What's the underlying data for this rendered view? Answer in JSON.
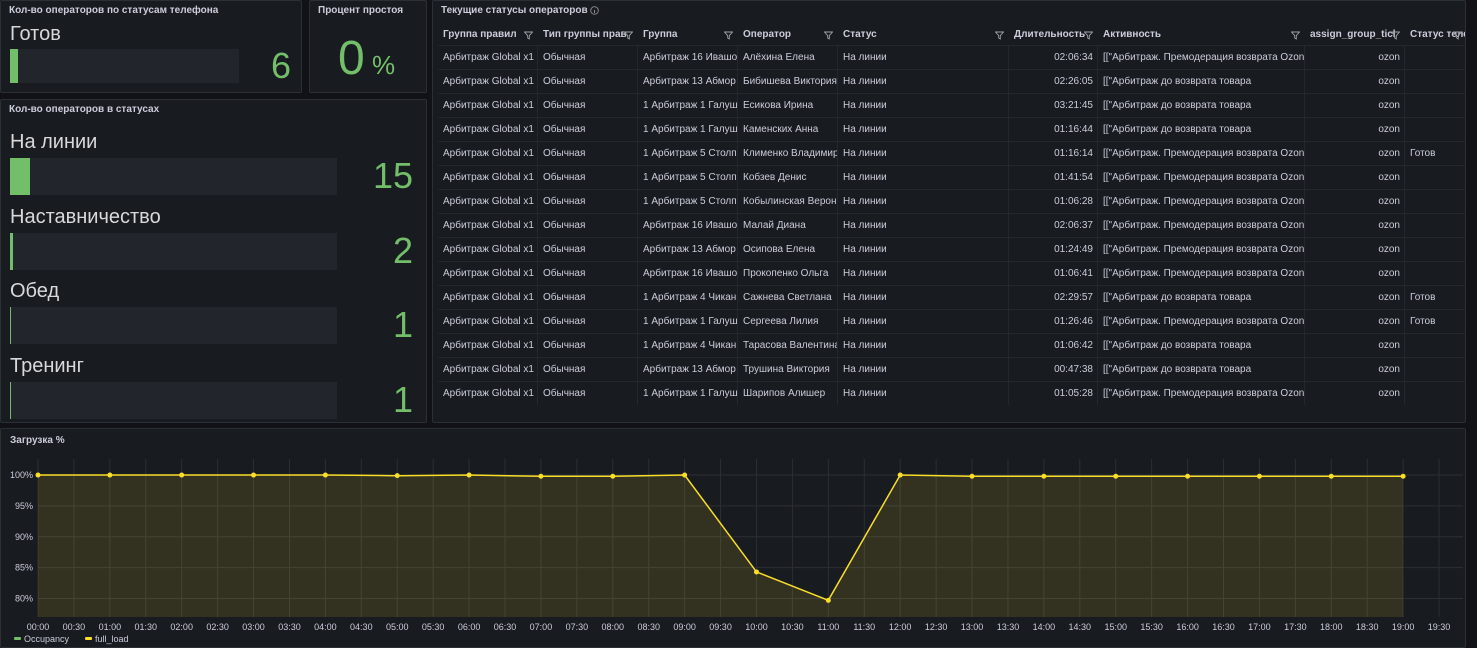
{
  "panels": {
    "phone_status": {
      "title": "Кол-во операторов по статусам телефона",
      "items": [
        {
          "label": "Готов",
          "value": 6
        }
      ]
    },
    "idle": {
      "title": "Процент простоя",
      "value": 0,
      "unit": "%"
    },
    "statuses": {
      "title": "Кол-во операторов в статусах",
      "items": [
        {
          "label": "На линии",
          "value": 15
        },
        {
          "label": "Наставничество",
          "value": 2
        },
        {
          "label": "Обед",
          "value": 1
        },
        {
          "label": "Тренинг",
          "value": 1
        }
      ]
    },
    "table": {
      "title": "Текущие статусы операторов",
      "columns": [
        "Группа правил",
        "Тип группы прав",
        "Группа",
        "Оператор",
        "Статус",
        "Длительность",
        "Активность",
        "assign_group_ticl",
        "Статус теле"
      ],
      "rows": [
        [
          "Арбитраж Global x1",
          "Обычная",
          "Арбитраж 16 Ивашов",
          "Алёхина Елена",
          "На линии",
          "02:06:34",
          "[[\"Арбитраж. Премодерация возврата Ozon",
          "ozon"
        ],
        [
          "Арбитраж Global x1",
          "Обычная",
          "Арбитраж 13 Абмор",
          "Бибишева Виктория",
          "На линии",
          "02:26:05",
          "[[\"Арбитраж до возврата товара",
          "ozon"
        ],
        [
          "Арбитраж Global x1",
          "Обычная",
          "1 Арбитраж 1 Галуш",
          "Есикова Ирина",
          "На линии",
          "03:21:45",
          "[[\"Арбитраж до возврата товара",
          "ozon"
        ],
        [
          "Арбитраж Global x1",
          "Обычная",
          "1 Арбитраж 1 Галуш",
          "Каменских Анна",
          "На линии",
          "01:16:44",
          "[[\"Арбитраж до возврата товара",
          "ozon"
        ],
        [
          "Арбитраж Global x1",
          "Обычная",
          "1 Арбитраж 5 Столп",
          "Клименко Владимир",
          "На линии",
          "01:16:14",
          "[[\"Арбитраж. Премодерация возврата Ozon",
          "ozon",
          "Готов"
        ],
        [
          "Арбитраж Global x1",
          "Обычная",
          "1 Арбитраж 5 Столп",
          "Кобзев Денис",
          "На линии",
          "01:41:54",
          "[[\"Арбитраж. Премодерация возврата Ozon",
          "ozon"
        ],
        [
          "Арбитраж Global x1",
          "Обычная",
          "1 Арбитраж 5 Столп",
          "Кобылинская Верон",
          "На линии",
          "01:06:28",
          "[[\"Арбитраж. Премодерация возврата Ozon",
          "ozon"
        ],
        [
          "Арбитраж Global x1",
          "Обычная",
          "Арбитраж 16 Ивашов",
          "Малай Диана",
          "На линии",
          "02:06:37",
          "[[\"Арбитраж. Премодерация возврата Ozon",
          "ozon"
        ],
        [
          "Арбитраж Global x1",
          "Обычная",
          "Арбитраж 13 Абмор",
          "Осипова Елена",
          "На линии",
          "01:24:49",
          "[[\"Арбитраж. Премодерация возврата Ozon",
          "ozon"
        ],
        [
          "Арбитраж Global x1",
          "Обычная",
          "Арбитраж 16 Ивашов",
          "Прокопенко Ольга",
          "На линии",
          "01:06:41",
          "[[\"Арбитраж. Премодерация возврата Ozon",
          "ozon"
        ],
        [
          "Арбитраж Global x1",
          "Обычная",
          "1 Арбитраж 4 Чикан",
          "Сажнева Светлана",
          "На линии",
          "02:29:57",
          "[[\"Арбитраж до возврата товара",
          "ozon",
          "Готов"
        ],
        [
          "Арбитраж Global x1",
          "Обычная",
          "1 Арбитраж 1 Галуш",
          "Сергеева Лилия",
          "На линии",
          "01:26:46",
          "[[\"Арбитраж. Премодерация возврата Ozon",
          "ozon",
          "Готов"
        ],
        [
          "Арбитраж Global x1",
          "Обычная",
          "1 Арбитраж 4 Чикан",
          "Тарасова Валентина",
          "На линии",
          "01:06:42",
          "[[\"Арбитраж до возврата товара",
          "ozon"
        ],
        [
          "Арбитраж Global x1",
          "Обычная",
          "Арбитраж 13 Абмор",
          "Трушина Виктория",
          "На линии",
          "00:47:38",
          "[[\"Арбитраж до возврата товара",
          "ozon"
        ],
        [
          "Арбитраж Global x1",
          "Обычная",
          "1 Арбитраж 1 Галуш",
          "Шарипов Алишер",
          "На линии",
          "01:05:28",
          "[[\"Арбитраж. Премодерация возврата Ozon",
          "ozon"
        ]
      ]
    }
  },
  "chart_data": {
    "type": "line",
    "title": "Загрузка %",
    "x": [
      0,
      60,
      120,
      180,
      240,
      300,
      360,
      420,
      480,
      540,
      600,
      660,
      720,
      780,
      840,
      900,
      960,
      1020,
      1080,
      1140
    ],
    "series": [
      {
        "name": "Occupancy",
        "color": "#73bf69"
      },
      {
        "name": "full_load",
        "color": "#fade2a",
        "values": [
          100,
          100,
          100,
          100,
          100,
          99.9,
          100,
          99.8,
          99.8,
          100,
          84.3,
          79.7,
          100,
          99.8,
          99.8,
          99.8,
          99.8,
          99.8,
          99.8,
          99.8
        ]
      }
    ],
    "xlim": [
      0,
      1190
    ],
    "xticks": [
      {
        "value": 0,
        "label": "00:00"
      },
      {
        "value": 30,
        "label": "00:30"
      },
      {
        "value": 60,
        "label": "01:00"
      },
      {
        "value": 90,
        "label": "01:30"
      },
      {
        "value": 120,
        "label": "02:00"
      },
      {
        "value": 150,
        "label": "02:30"
      },
      {
        "value": 180,
        "label": "03:00"
      },
      {
        "value": 210,
        "label": "03:30"
      },
      {
        "value": 240,
        "label": "04:00"
      },
      {
        "value": 270,
        "label": "04:30"
      },
      {
        "value": 300,
        "label": "05:00"
      },
      {
        "value": 330,
        "label": "05:30"
      },
      {
        "value": 360,
        "label": "06:00"
      },
      {
        "value": 390,
        "label": "06:30"
      },
      {
        "value": 420,
        "label": "07:00"
      },
      {
        "value": 450,
        "label": "07:30"
      },
      {
        "value": 480,
        "label": "08:00"
      },
      {
        "value": 510,
        "label": "08:30"
      },
      {
        "value": 540,
        "label": "09:00"
      },
      {
        "value": 570,
        "label": "09:30"
      },
      {
        "value": 600,
        "label": "10:00"
      },
      {
        "value": 630,
        "label": "10:30"
      },
      {
        "value": 660,
        "label": "11:00"
      },
      {
        "value": 690,
        "label": "11:30"
      },
      {
        "value": 720,
        "label": "12:00"
      },
      {
        "value": 750,
        "label": "12:30"
      },
      {
        "value": 780,
        "label": "13:00"
      },
      {
        "value": 810,
        "label": "13:30"
      },
      {
        "value": 840,
        "label": "14:00"
      },
      {
        "value": 870,
        "label": "14:30"
      },
      {
        "value": 900,
        "label": "15:00"
      },
      {
        "value": 930,
        "label": "15:30"
      },
      {
        "value": 960,
        "label": "16:00"
      },
      {
        "value": 990,
        "label": "16:30"
      },
      {
        "value": 1020,
        "label": "17:00"
      },
      {
        "value": 1050,
        "label": "17:30"
      },
      {
        "value": 1080,
        "label": "18:00"
      },
      {
        "value": 1110,
        "label": "18:30"
      },
      {
        "value": 1140,
        "label": "19:00"
      },
      {
        "value": 1170,
        "label": "19:30"
      }
    ],
    "ylim": [
      77,
      102.6
    ],
    "yticks": [
      {
        "value": 80,
        "label": "80%"
      },
      {
        "value": 85,
        "label": "85%"
      },
      {
        "value": 90,
        "label": "90%"
      },
      {
        "value": 95,
        "label": "95%"
      },
      {
        "value": 100,
        "label": "100%"
      }
    ],
    "grid": true
  }
}
